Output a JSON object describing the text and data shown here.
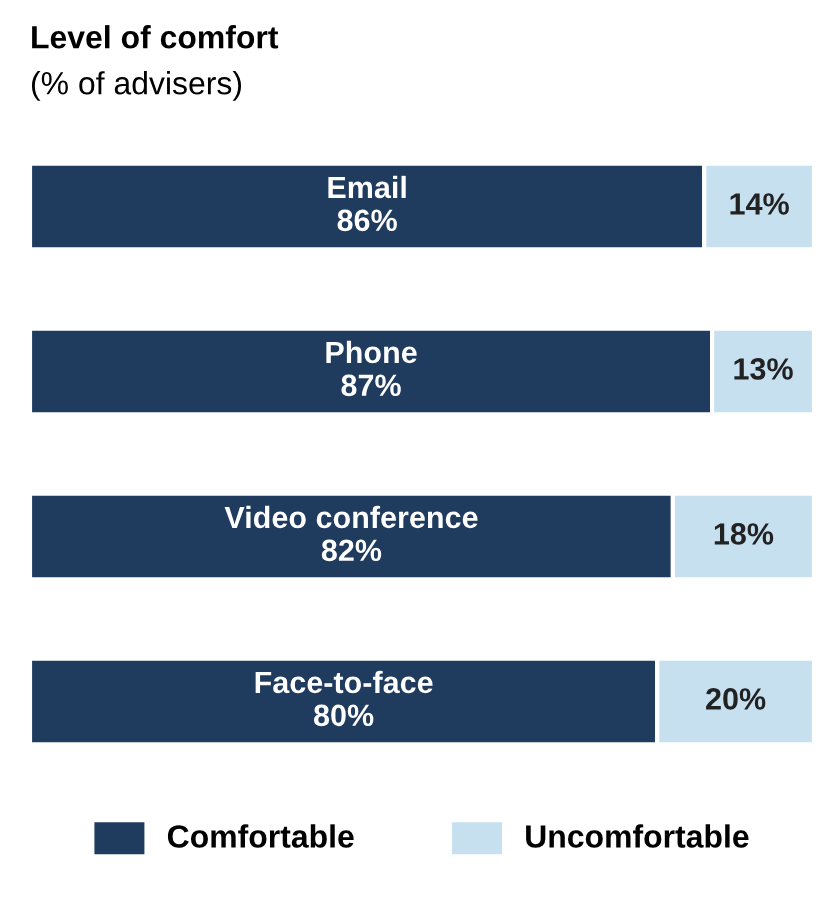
{
  "chart_data": {
    "type": "bar",
    "orientation": "horizontal",
    "stacked": true,
    "title": "Level of comfort",
    "subtitle": "(% of advisers)",
    "categories": [
      "Email",
      "Phone",
      "Video conference",
      "Face-to-face"
    ],
    "series": [
      {
        "name": "Comfortable",
        "color": "#1f3b5e",
        "values": [
          86,
          87,
          82,
          80
        ],
        "value_labels": [
          "86%",
          "87%",
          "82%",
          "80%"
        ]
      },
      {
        "name": "Uncomfortable",
        "color": "#c6e0f0",
        "values": [
          14,
          13,
          18,
          20
        ],
        "value_labels": [
          "14%",
          "13%",
          "18%",
          "20%"
        ]
      }
    ],
    "xlim": [
      0,
      100
    ],
    "legend": "bottom"
  }
}
